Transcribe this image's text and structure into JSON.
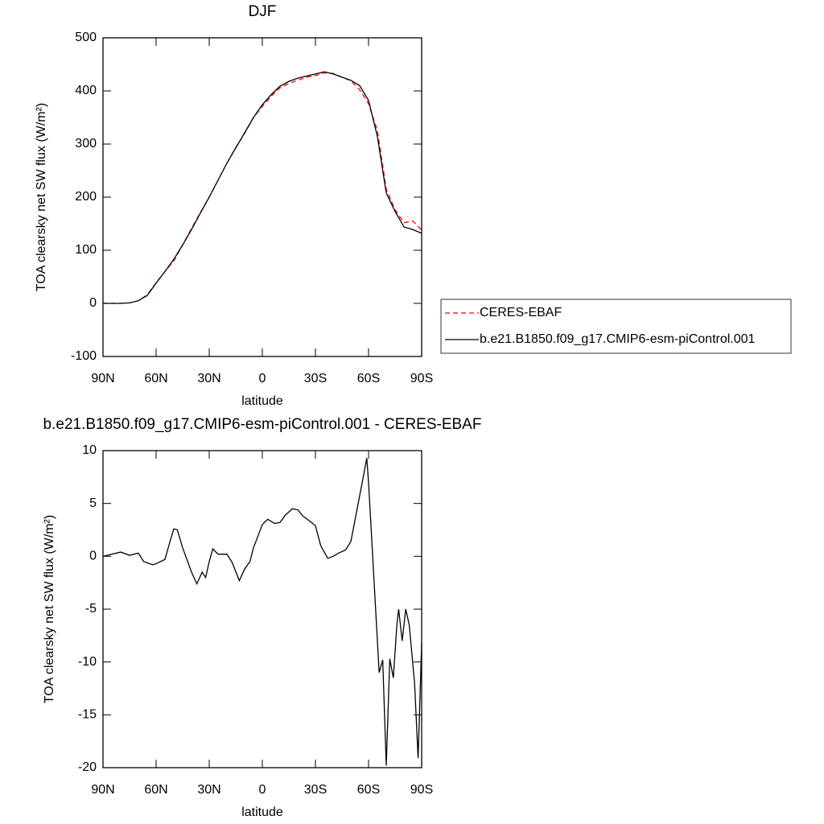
{
  "chart_data": [
    {
      "type": "line",
      "title": "DJF",
      "xlabel": "latitude",
      "ylabel": "TOA clearsky net SW flux (W/m²)",
      "xlim": [
        90,
        -90
      ],
      "xticks": [
        {
          "value": 90,
          "label": "90N"
        },
        {
          "value": 60,
          "label": "60N"
        },
        {
          "value": 30,
          "label": "30N"
        },
        0,
        {
          "value": -30,
          "label": "30S"
        },
        {
          "value": -60,
          "label": "60S"
        },
        {
          "value": -90,
          "label": "90S"
        }
      ],
      "ylim": [
        -100,
        500
      ],
      "yticks": [
        -100,
        0,
        100,
        200,
        300,
        400,
        500
      ],
      "legend": "right",
      "x": [
        90,
        85,
        80,
        75,
        70,
        65,
        60,
        55,
        50,
        45,
        40,
        35,
        30,
        25,
        20,
        15,
        10,
        5,
        0,
        -5,
        -10,
        -15,
        -20,
        -25,
        -30,
        -35,
        -40,
        -45,
        -50,
        -55,
        -60,
        -65,
        -70,
        -75,
        -80,
        -85,
        -90
      ],
      "series": [
        {
          "name": "CERES-EBAF",
          "color": "#ff0000",
          "linestyle": "dashed",
          "values": [
            0,
            0,
            0,
            1,
            5,
            16,
            39,
            60,
            80,
            110,
            141,
            171,
            200,
            232,
            264,
            293,
            320,
            350,
            371,
            390,
            406,
            414,
            420,
            426,
            429,
            434,
            433,
            426,
            419,
            402,
            376,
            325,
            215,
            176,
            152,
            155,
            138
          ]
        },
        {
          "name": "b.e21.B1850.f09_g17.CMIP6-esm-piControl.001",
          "color": "#000000",
          "linestyle": "solid",
          "values": [
            0,
            0,
            0,
            1,
            5,
            15,
            38,
            60,
            83,
            110,
            139,
            170,
            200,
            232,
            264,
            293,
            321,
            350,
            374,
            393,
            409,
            418,
            424,
            428,
            432,
            436,
            432,
            426,
            420,
            410,
            382,
            314,
            208,
            173,
            144,
            139,
            132
          ]
        }
      ]
    },
    {
      "type": "line",
      "title": "b.e21.B1850.f09_g17.CMIP6-esm-piControl.001 - CERES-EBAF",
      "xlabel": "latitude",
      "ylabel": "TOA clearsky net SW flux (W/m²)",
      "xlim": [
        90,
        -90
      ],
      "xticks": [
        {
          "value": 90,
          "label": "90N"
        },
        {
          "value": 60,
          "label": "60N"
        },
        {
          "value": 30,
          "label": "30N"
        },
        0,
        {
          "value": -30,
          "label": "30S"
        },
        {
          "value": -60,
          "label": "60S"
        },
        {
          "value": -90,
          "label": "90S"
        }
      ],
      "ylim": [
        -20,
        10
      ],
      "yticks": [
        -20,
        -15,
        -10,
        -5,
        0,
        5,
        10
      ],
      "x": [
        90,
        80,
        75,
        70,
        67,
        62,
        60,
        55,
        52,
        50,
        48,
        45,
        40,
        37,
        34,
        32,
        30,
        28,
        25,
        20,
        17,
        13,
        10,
        7,
        5,
        0,
        -3,
        -7,
        -10,
        -13,
        -17,
        -20,
        -23,
        -27,
        -30,
        -33,
        -37,
        -40,
        -43,
        -47,
        -50,
        -53,
        -57,
        -59,
        -60,
        -62,
        -64,
        -66,
        -68,
        -70,
        -72,
        -74,
        -76,
        -77,
        -79,
        -81,
        -83,
        -86,
        -88,
        -90
      ],
      "series": [
        {
          "color": "#000000",
          "linestyle": "solid",
          "values": [
            0,
            0.4,
            0.1,
            0.3,
            -0.5,
            -0.8,
            -0.7,
            -0.3,
            1.5,
            2.6,
            2.5,
            0.8,
            -1.5,
            -2.6,
            -1.5,
            -2,
            -0.5,
            0.7,
            0.2,
            0.2,
            -0.6,
            -2.3,
            -1.2,
            -0.5,
            0.8,
            3.0,
            3.5,
            3.1,
            3.2,
            3.9,
            4.5,
            4.4,
            3.8,
            3.3,
            2.9,
            1.0,
            -0.2,
            0,
            0.3,
            0.6,
            1.4,
            4,
            7.5,
            9.3,
            7.0,
            1.0,
            -5,
            -11,
            -9.8,
            -19.8,
            -9.7,
            -11.5,
            -6.5,
            -5,
            -8,
            -5,
            -6.5,
            -12,
            -19.1,
            -8.2
          ]
        }
      ]
    }
  ]
}
